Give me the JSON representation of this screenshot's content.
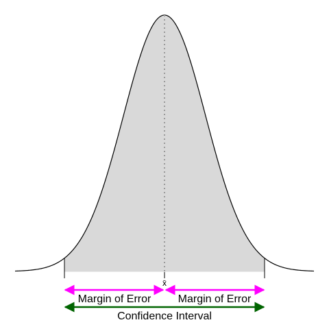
{
  "diagram": {
    "mean_label": "x̄",
    "left_margin_label": "Margin of Error",
    "right_margin_label": "Margin of Error",
    "interval_label": "Confidence Interval"
  },
  "colors": {
    "shade_fill": "#d9d9d9",
    "curve_stroke": "#000000",
    "mean_line": "#9a9a9a",
    "margin_arrow": "#ff00ff",
    "interval_arrow": "#006400"
  }
}
